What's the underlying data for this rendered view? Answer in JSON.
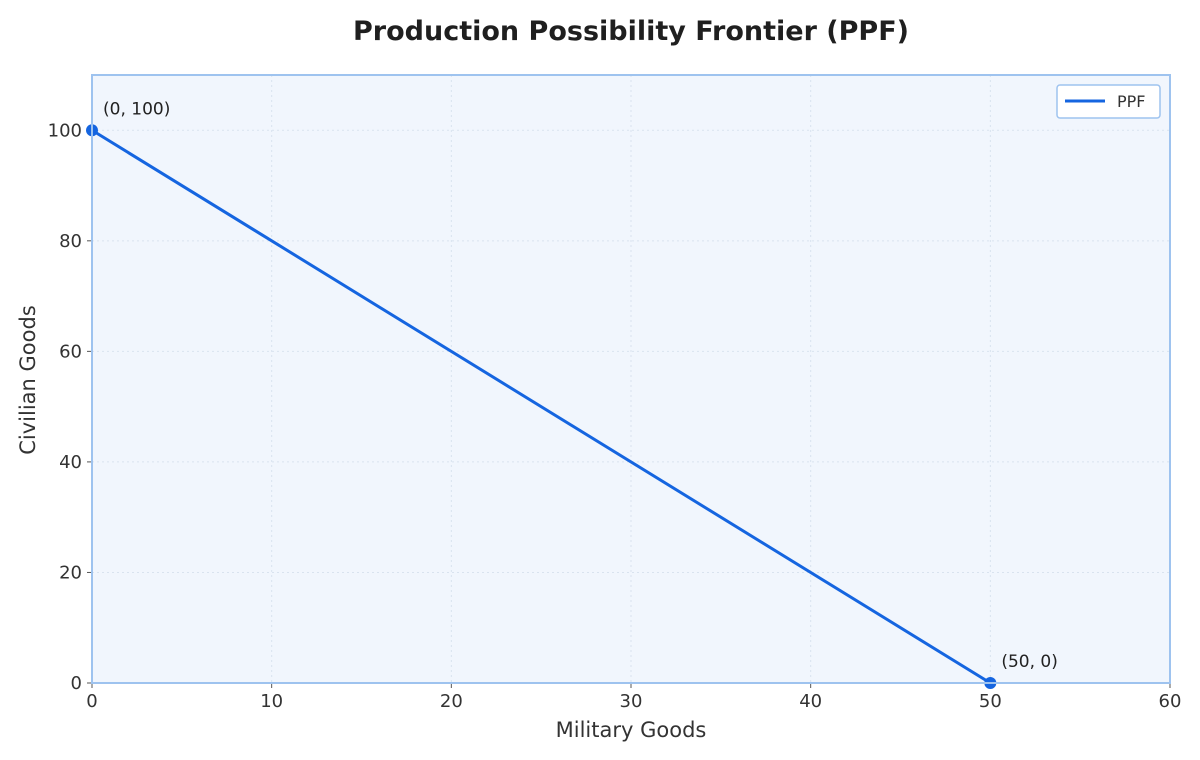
{
  "chart_data": {
    "type": "line",
    "title": "Production Possibility Frontier (PPF)",
    "xlabel": "Military Goods",
    "ylabel": "Civilian Goods",
    "xlim": [
      0,
      60
    ],
    "ylim": [
      0,
      110
    ],
    "xticks": [
      "0",
      "10",
      "20",
      "30",
      "40",
      "50",
      "60"
    ],
    "yticks": [
      "0",
      "20",
      "40",
      "60",
      "80",
      "100"
    ],
    "grid": true,
    "legend_position": "top-right",
    "series": [
      {
        "name": "PPF",
        "color": "#1565e0",
        "points": [
          [
            0,
            100
          ],
          [
            50,
            0
          ]
        ]
      }
    ],
    "annotations": [
      {
        "text": "(0, 100)",
        "x": 0,
        "y": 100
      },
      {
        "text": "(50, 0)",
        "x": 50,
        "y": 0
      }
    ],
    "colors": {
      "plot_background": "#f1f6fd",
      "frame": "#9ec3ef",
      "grid": "#d9e3ef",
      "line": "#1565e0"
    }
  }
}
